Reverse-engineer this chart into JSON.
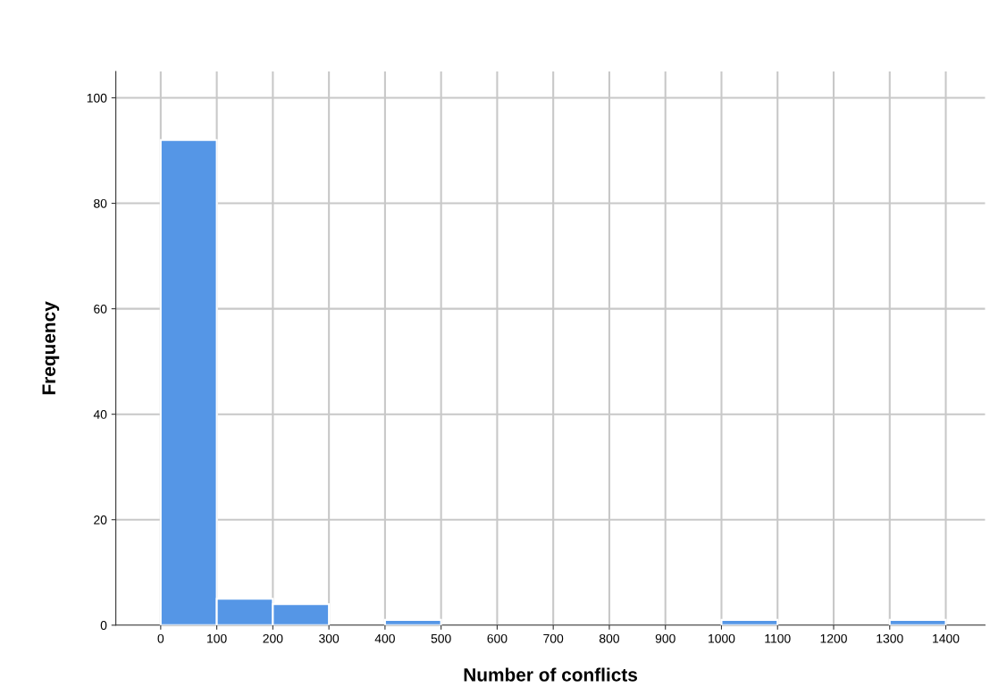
{
  "chart_data": {
    "type": "histogram",
    "xlabel": "Number of conflicts",
    "ylabel": "Frequency",
    "bins": [
      0,
      100,
      200,
      300,
      400,
      500,
      600,
      700,
      800,
      900,
      1000,
      1100,
      1200,
      1300,
      1400
    ],
    "values": [
      92,
      5,
      4,
      0,
      1,
      0,
      0,
      0,
      0,
      0,
      1,
      0,
      0,
      1
    ],
    "color": "#5596e6",
    "xlim": [
      -80,
      1470
    ],
    "ylim": [
      0,
      105
    ],
    "xticks": [
      0,
      100,
      200,
      300,
      400,
      500,
      600,
      700,
      800,
      900,
      1000,
      1100,
      1200,
      1300,
      1400
    ],
    "yticks": [
      0,
      20,
      40,
      60,
      80,
      100
    ],
    "grid": true
  }
}
